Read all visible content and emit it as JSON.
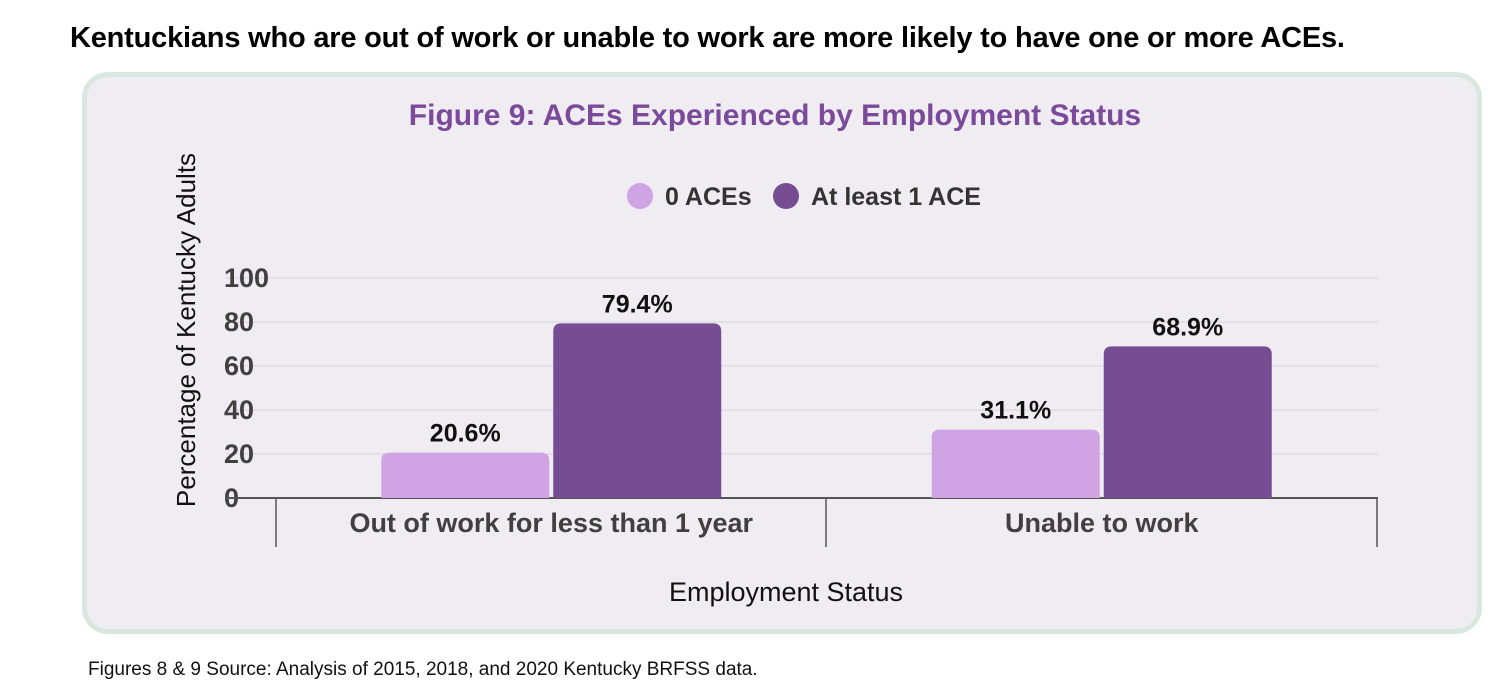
{
  "headline": "Kentuckians who are out of work or unable to work are more likely to have one or more ACEs.",
  "source": "Figures 8 & 9  Source: Analysis of 2015, 2018, and 2020 Kentucky BRFSS data.",
  "chart_data": {
    "type": "bar",
    "title": "Figure 9: ACEs Experienced by Employment Status",
    "xlabel": "Employment Status",
    "ylabel": "Percentage of Kentucky Adults",
    "categories": [
      "Out of work for less than 1 year",
      "Unable to work"
    ],
    "series": [
      {
        "name": "0 ACEs",
        "values": [
          20.6,
          31.1
        ],
        "labels": [
          "20.6%",
          "31.1%"
        ],
        "color": "#cfa3e4"
      },
      {
        "name": "At least 1 ACE",
        "values": [
          79.4,
          68.9
        ],
        "labels": [
          "79.4%",
          "68.9%"
        ],
        "color": "#764c92"
      }
    ],
    "ylim": [
      0,
      100
    ],
    "yticks": [
      0,
      20,
      40,
      60,
      80,
      100
    ],
    "grid": true,
    "legend": "top-center",
    "colors": {
      "title": "#7b4a9b",
      "panel_bg": "#efecf2",
      "panel_border": "#d9e8df",
      "grid": "#d6d2da",
      "axis": "#555555",
      "tick_text": "#404040"
    }
  }
}
